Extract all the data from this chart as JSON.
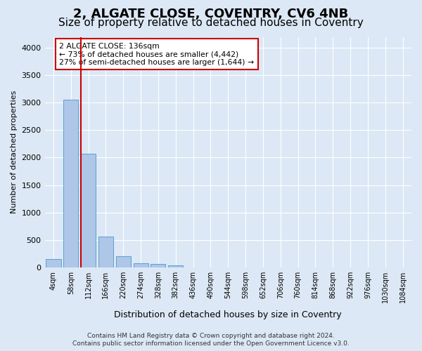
{
  "title": "2, ALGATE CLOSE, COVENTRY, CV6 4NB",
  "subtitle": "Size of property relative to detached houses in Coventry",
  "xlabel": "Distribution of detached houses by size in Coventry",
  "ylabel": "Number of detached properties",
  "footer_line1": "Contains HM Land Registry data © Crown copyright and database right 2024.",
  "footer_line2": "Contains public sector information licensed under the Open Government Licence v3.0.",
  "bin_labels": [
    "4sqm",
    "58sqm",
    "112sqm",
    "166sqm",
    "220sqm",
    "274sqm",
    "328sqm",
    "382sqm",
    "436sqm",
    "490sqm",
    "544sqm",
    "598sqm",
    "652sqm",
    "706sqm",
    "760sqm",
    "814sqm",
    "868sqm",
    "922sqm",
    "976sqm",
    "1030sqm",
    "1084sqm"
  ],
  "bar_values": [
    150,
    3050,
    2070,
    560,
    200,
    75,
    55,
    40,
    0,
    0,
    0,
    0,
    0,
    0,
    0,
    0,
    0,
    0,
    0,
    0,
    0
  ],
  "bar_color": "#aec6e8",
  "bar_edge_color": "#5a9fd4",
  "vline_pos": 1.58,
  "vline_color": "#cc0000",
  "annotation_text": "2 ALGATE CLOSE: 136sqm\n← 73% of detached houses are smaller (4,442)\n27% of semi-detached houses are larger (1,644) →",
  "annotation_box_color": "#ffffff",
  "annotation_box_edge": "#cc0000",
  "ylim": [
    0,
    4200
  ],
  "yticks": [
    0,
    500,
    1000,
    1500,
    2000,
    2500,
    3000,
    3500,
    4000
  ],
  "background_color": "#dce8f5",
  "plot_background": "#dce8f5",
  "grid_color": "#ffffff",
  "title_fontsize": 13,
  "subtitle_fontsize": 11
}
